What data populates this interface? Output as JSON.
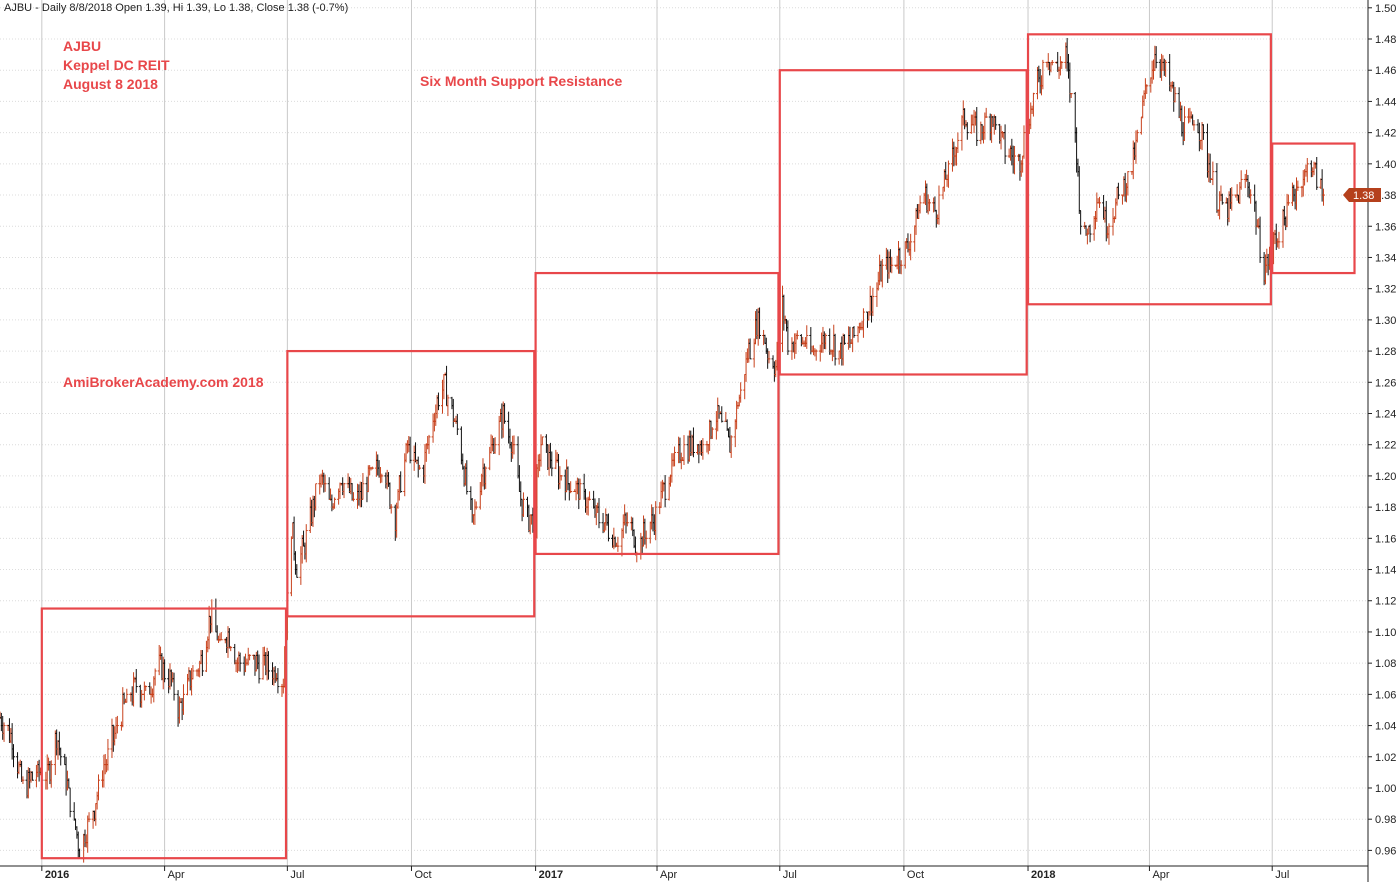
{
  "header": {
    "title": "AJBU - Daily 8/8/2018 Open 1.39, Hi 1.39, Lo 1.38, Close 1.38 (-0.7%)"
  },
  "annotations": {
    "ticker": "AJBU",
    "company": "Keppel DC REIT",
    "date": "August 8 2018",
    "center_title": "Six Month Support Resistance",
    "watermark": "AmiBrokerAcademy.com  2018"
  },
  "price_badge": "1.38",
  "colors": {
    "box": "#e8474a",
    "up_bar": "#c8421d",
    "down_bar": "#111111",
    "badge_bg": "#b5401c"
  },
  "chart_data": {
    "type": "bar",
    "title": "AJBU - Daily 8/8/2018 Open 1.39, Hi 1.39, Lo 1.38, Close 1.38 (-0.7%)",
    "xlabel": "",
    "ylabel": "",
    "x_range": [
      "2015-12-01",
      "2018-09-10"
    ],
    "ylim": [
      0.95,
      1.505
    ],
    "y_ticks": [
      0.96,
      0.98,
      1.0,
      1.02,
      1.04,
      1.06,
      1.08,
      1.1,
      1.12,
      1.14,
      1.16,
      1.18,
      1.2,
      1.22,
      1.24,
      1.26,
      1.28,
      1.3,
      1.32,
      1.34,
      1.36,
      1.38,
      1.4,
      1.42,
      1.44,
      1.46,
      1.48,
      1.5
    ],
    "y_tick_labels": [
      "0.96",
      "0.98",
      "1.00",
      "1.02",
      "1.04",
      "1.06",
      "1.08",
      "1.10",
      "1.12",
      "1.14",
      "1.16",
      "1.18",
      "1.20",
      "1.22",
      "1.24",
      "1.26",
      "1.28",
      "1.30",
      "1.32",
      "1.34",
      "1.36",
      "1.38",
      "1.40",
      "1.42",
      "1.44",
      "1.46",
      "1.48",
      "1.50"
    ],
    "x_ticks": [
      {
        "date": "2016-01-01",
        "label": "2016",
        "year": true
      },
      {
        "date": "2016-04-01",
        "label": "Apr",
        "year": false
      },
      {
        "date": "2016-07-01",
        "label": "Jul",
        "year": false
      },
      {
        "date": "2016-10-01",
        "label": "Oct",
        "year": false
      },
      {
        "date": "2017-01-01",
        "label": "2017",
        "year": true
      },
      {
        "date": "2017-04-01",
        "label": "Apr",
        "year": false
      },
      {
        "date": "2017-07-01",
        "label": "Jul",
        "year": false
      },
      {
        "date": "2017-10-01",
        "label": "Oct",
        "year": false
      },
      {
        "date": "2018-01-01",
        "label": "2018",
        "year": true
      },
      {
        "date": "2018-04-01",
        "label": "Apr",
        "year": false
      },
      {
        "date": "2018-07-01",
        "label": "Jul",
        "year": false
      }
    ],
    "grid": true,
    "last_close": 1.38,
    "price_path": [
      [
        "2015-12-01",
        1.045
      ],
      [
        "2015-12-10",
        1.03
      ],
      [
        "2015-12-18",
        1.0
      ],
      [
        "2015-12-28",
        1.01
      ],
      [
        "2016-01-06",
        1.01
      ],
      [
        "2016-01-12",
        1.035
      ],
      [
        "2016-01-18",
        1.01
      ],
      [
        "2016-01-22",
        0.99
      ],
      [
        "2016-01-29",
        0.96
      ],
      [
        "2016-02-08",
        0.985
      ],
      [
        "2016-02-15",
        1.01
      ],
      [
        "2016-02-22",
        1.03
      ],
      [
        "2016-03-01",
        1.05
      ],
      [
        "2016-03-10",
        1.065
      ],
      [
        "2016-03-18",
        1.06
      ],
      [
        "2016-03-28",
        1.08
      ],
      [
        "2016-04-05",
        1.07
      ],
      [
        "2016-04-12",
        1.05
      ],
      [
        "2016-04-20",
        1.07
      ],
      [
        "2016-04-28",
        1.08
      ],
      [
        "2016-05-05",
        1.11
      ],
      [
        "2016-05-12",
        1.09
      ],
      [
        "2016-05-18",
        1.1
      ],
      [
        "2016-05-25",
        1.08
      ],
      [
        "2016-06-05",
        1.08
      ],
      [
        "2016-06-15",
        1.08
      ],
      [
        "2016-06-22",
        1.075
      ],
      [
        "2016-06-28",
        1.07
      ],
      [
        "2016-06-30",
        1.1
      ],
      [
        "2016-07-04",
        1.17
      ],
      [
        "2016-07-08",
        1.14
      ],
      [
        "2016-07-15",
        1.16
      ],
      [
        "2016-07-25",
        1.2
      ],
      [
        "2016-08-02",
        1.18
      ],
      [
        "2016-08-10",
        1.2
      ],
      [
        "2016-08-20",
        1.18
      ],
      [
        "2016-09-01",
        1.2
      ],
      [
        "2016-09-10",
        1.21
      ],
      [
        "2016-09-18",
        1.17
      ],
      [
        "2016-09-28",
        1.22
      ],
      [
        "2016-10-08",
        1.2
      ],
      [
        "2016-10-18",
        1.24
      ],
      [
        "2016-10-25",
        1.26
      ],
      [
        "2016-11-01",
        1.24
      ],
      [
        "2016-11-08",
        1.21
      ],
      [
        "2016-11-15",
        1.17
      ],
      [
        "2016-11-22",
        1.2
      ],
      [
        "2016-11-30",
        1.22
      ],
      [
        "2016-12-08",
        1.24
      ],
      [
        "2016-12-15",
        1.22
      ],
      [
        "2016-12-22",
        1.18
      ],
      [
        "2016-12-30",
        1.17
      ],
      [
        "2017-01-05",
        1.22
      ],
      [
        "2017-01-12",
        1.21
      ],
      [
        "2017-01-20",
        1.2
      ],
      [
        "2017-02-01",
        1.19
      ],
      [
        "2017-02-10",
        1.18
      ],
      [
        "2017-02-20",
        1.17
      ],
      [
        "2017-03-01",
        1.16
      ],
      [
        "2017-03-10",
        1.17
      ],
      [
        "2017-03-18",
        1.155
      ],
      [
        "2017-03-28",
        1.17
      ],
      [
        "2017-04-05",
        1.19
      ],
      [
        "2017-04-15",
        1.21
      ],
      [
        "2017-04-25",
        1.22
      ],
      [
        "2017-05-05",
        1.22
      ],
      [
        "2017-05-15",
        1.24
      ],
      [
        "2017-05-25",
        1.22
      ],
      [
        "2017-06-01",
        1.25
      ],
      [
        "2017-06-08",
        1.28
      ],
      [
        "2017-06-15",
        1.3
      ],
      [
        "2017-06-22",
        1.28
      ],
      [
        "2017-06-28",
        1.27
      ],
      [
        "2017-07-03",
        1.31
      ],
      [
        "2017-07-08",
        1.28
      ],
      [
        "2017-07-15",
        1.29
      ],
      [
        "2017-07-25",
        1.28
      ],
      [
        "2017-08-05",
        1.29
      ],
      [
        "2017-08-15",
        1.28
      ],
      [
        "2017-08-25",
        1.29
      ],
      [
        "2017-09-05",
        1.31
      ],
      [
        "2017-09-15",
        1.33
      ],
      [
        "2017-09-25",
        1.34
      ],
      [
        "2017-10-05",
        1.35
      ],
      [
        "2017-10-15",
        1.38
      ],
      [
        "2017-10-25",
        1.37
      ],
      [
        "2017-11-05",
        1.4
      ],
      [
        "2017-11-15",
        1.43
      ],
      [
        "2017-11-25",
        1.42
      ],
      [
        "2017-12-05",
        1.43
      ],
      [
        "2017-12-15",
        1.41
      ],
      [
        "2017-12-25",
        1.4
      ],
      [
        "2018-01-02",
        1.43
      ],
      [
        "2018-01-08",
        1.45
      ],
      [
        "2018-01-15",
        1.47
      ],
      [
        "2018-01-22",
        1.46
      ],
      [
        "2018-01-29",
        1.47
      ],
      [
        "2018-02-05",
        1.42
      ],
      [
        "2018-02-10",
        1.35
      ],
      [
        "2018-02-15",
        1.36
      ],
      [
        "2018-02-22",
        1.38
      ],
      [
        "2018-03-01",
        1.36
      ],
      [
        "2018-03-10",
        1.38
      ],
      [
        "2018-03-20",
        1.4
      ],
      [
        "2018-03-28",
        1.44
      ],
      [
        "2018-04-05",
        1.47
      ],
      [
        "2018-04-12",
        1.46
      ],
      [
        "2018-04-20",
        1.44
      ],
      [
        "2018-04-28",
        1.42
      ],
      [
        "2018-05-05",
        1.43
      ],
      [
        "2018-05-12",
        1.41
      ],
      [
        "2018-05-20",
        1.38
      ],
      [
        "2018-05-28",
        1.37
      ],
      [
        "2018-06-05",
        1.38
      ],
      [
        "2018-06-12",
        1.39
      ],
      [
        "2018-06-18",
        1.37
      ],
      [
        "2018-06-25",
        1.33
      ],
      [
        "2018-07-02",
        1.35
      ],
      [
        "2018-07-09",
        1.36
      ],
      [
        "2018-07-16",
        1.38
      ],
      [
        "2018-07-23",
        1.39
      ],
      [
        "2018-07-30",
        1.4
      ],
      [
        "2018-08-03",
        1.39
      ],
      [
        "2018-08-08",
        1.38
      ]
    ],
    "support_resistance_boxes": [
      {
        "start": "2016-01-01",
        "end": "2016-06-30",
        "low": 0.955,
        "high": 1.115
      },
      {
        "start": "2016-07-01",
        "end": "2016-12-31",
        "low": 1.11,
        "high": 1.28
      },
      {
        "start": "2017-01-01",
        "end": "2017-06-30",
        "low": 1.15,
        "high": 1.33
      },
      {
        "start": "2017-07-01",
        "end": "2017-12-31",
        "low": 1.265,
        "high": 1.46
      },
      {
        "start": "2018-01-01",
        "end": "2018-06-30",
        "low": 1.31,
        "high": 1.483
      },
      {
        "start": "2018-07-01",
        "end": "2018-08-31",
        "low": 1.33,
        "high": 1.413
      }
    ]
  }
}
